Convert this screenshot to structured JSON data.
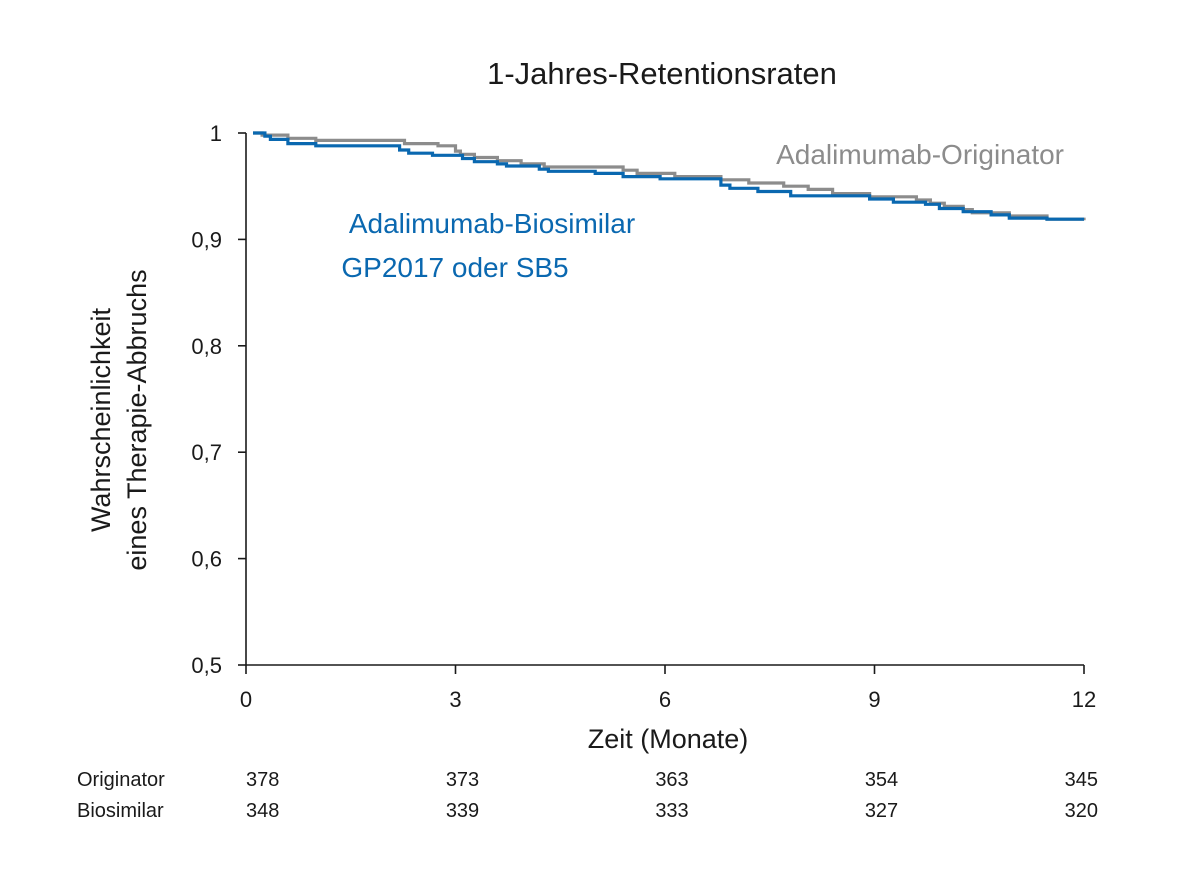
{
  "chart_data": {
    "type": "line",
    "style": "kaplan-meier step curves",
    "title": "1-Jahres-Retentionsraten",
    "xlabel": "Zeit (Monate)",
    "ylabel_lines": [
      "Wahrscheinlichkeit",
      "eines Therapie-Abbruchs"
    ],
    "xlim": [
      0,
      12
    ],
    "ylim": [
      0.5,
      1.0
    ],
    "x_ticks": [
      0,
      3,
      6,
      9,
      12
    ],
    "x_tick_labels": [
      "0",
      "3",
      "6",
      "9",
      "12"
    ],
    "y_ticks": [
      0.5,
      0.6,
      0.7,
      0.8,
      0.9,
      1.0
    ],
    "y_tick_labels": [
      "0,5",
      "0,6",
      "0,7",
      "0,8",
      "0,9",
      "1"
    ],
    "grid": false,
    "legend": "inline annotations",
    "series": [
      {
        "key": "originator",
        "annotation_lines": [
          "Adalimumab-Originator"
        ],
        "color": "#8c8c8c",
        "points": [
          [
            0.1,
            1.0
          ],
          [
            0.23,
            0.998
          ],
          [
            0.6,
            0.995
          ],
          [
            1.0,
            0.993
          ],
          [
            2.27,
            0.99
          ],
          [
            2.75,
            0.988
          ],
          [
            3.0,
            0.983
          ],
          [
            3.07,
            0.98
          ],
          [
            3.27,
            0.977
          ],
          [
            3.6,
            0.974
          ],
          [
            3.94,
            0.971
          ],
          [
            4.27,
            0.968
          ],
          [
            5.4,
            0.965
          ],
          [
            5.6,
            0.962
          ],
          [
            6.14,
            0.959
          ],
          [
            6.8,
            0.956
          ],
          [
            7.2,
            0.953
          ],
          [
            7.7,
            0.95
          ],
          [
            8.05,
            0.947
          ],
          [
            8.4,
            0.943
          ],
          [
            8.93,
            0.94
          ],
          [
            9.6,
            0.937
          ],
          [
            9.8,
            0.934
          ],
          [
            10.0,
            0.931
          ],
          [
            10.27,
            0.928
          ],
          [
            10.4,
            0.925
          ],
          [
            10.93,
            0.922
          ],
          [
            11.47,
            0.919
          ],
          [
            12.0,
            0.918
          ]
        ]
      },
      {
        "key": "biosimilar",
        "annotation_lines": [
          "Adalimumab-Biosimilar",
          "GP2017 oder SB5"
        ],
        "color": "#0a68b0",
        "points": [
          [
            0.1,
            1.0
          ],
          [
            0.27,
            0.997
          ],
          [
            0.35,
            0.994
          ],
          [
            0.6,
            0.99
          ],
          [
            1.0,
            0.988
          ],
          [
            2.2,
            0.984
          ],
          [
            2.33,
            0.981
          ],
          [
            2.67,
            0.979
          ],
          [
            3.1,
            0.976
          ],
          [
            3.27,
            0.973
          ],
          [
            3.6,
            0.971
          ],
          [
            3.73,
            0.969
          ],
          [
            4.2,
            0.966
          ],
          [
            4.33,
            0.965
          ],
          [
            4.33,
            0.964
          ],
          [
            5.0,
            0.962
          ],
          [
            5.4,
            0.962
          ],
          [
            5.4,
            0.959
          ],
          [
            5.93,
            0.957
          ],
          [
            6.8,
            0.951
          ],
          [
            6.93,
            0.948
          ],
          [
            7.33,
            0.945
          ],
          [
            7.8,
            0.941
          ],
          [
            8.93,
            0.938
          ],
          [
            9.27,
            0.935
          ],
          [
            9.73,
            0.933
          ],
          [
            9.93,
            0.929
          ],
          [
            10.27,
            0.926
          ],
          [
            10.67,
            0.923
          ],
          [
            10.93,
            0.92
          ],
          [
            11.47,
            0.919
          ],
          [
            12.0,
            0.919
          ]
        ]
      }
    ],
    "risk_table": {
      "time_points": [
        0,
        3,
        6,
        9,
        12
      ],
      "rows": [
        {
          "label": "Originator",
          "values": [
            "378",
            "373",
            "363",
            "354",
            "345"
          ]
        },
        {
          "label": "Biosimilar",
          "values": [
            "348",
            "339",
            "333",
            "327",
            "320"
          ]
        }
      ]
    }
  }
}
